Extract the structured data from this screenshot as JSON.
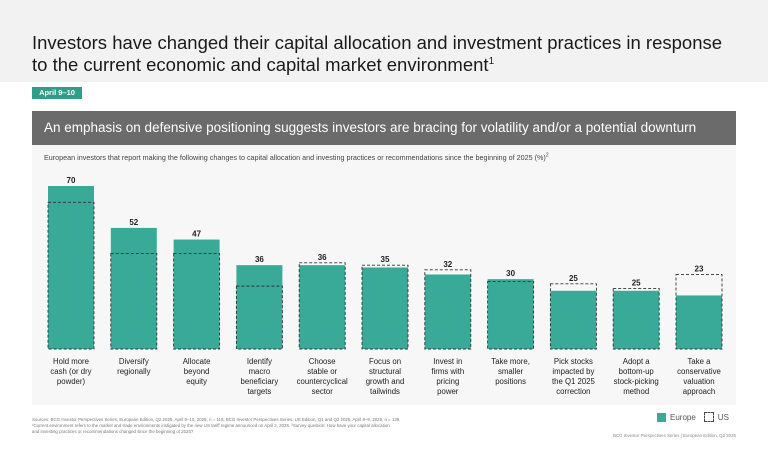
{
  "title": {
    "text": "Investors have changed their capital allocation and investment practices in response to the current economic and capital market environment",
    "footnote_mark": "1"
  },
  "date_tag": "April 9–10",
  "section_title": "An emphasis on defensive positioning suggests investors are bracing for volatility and/or a potential downturn",
  "subtitle": {
    "text": "European investors that report making the following changes to capital allocation and investing practices or recommendations since the beginning of 2025 (%)",
    "footnote_mark": "2"
  },
  "chart_data": {
    "type": "bar",
    "categories": [
      "Hold more cash (or dry powder)",
      "Diversify regionally",
      "Allocate beyond equity",
      "Identify macro beneficiary targets",
      "Choose stable or countercyclical sector",
      "Focus on structural growth and tailwinds",
      "Invest in firms with pricing power",
      "Take more, smaller positions",
      "Pick stocks impacted by the Q1 2025 correction",
      "Adopt a bottom-up stock-picking method",
      "Take a conservative valuation approach"
    ],
    "category_lines": [
      [
        "Hold more",
        "cash (or dry",
        "powder)"
      ],
      [
        "Diversify",
        "regionally"
      ],
      [
        "Allocate",
        "beyond",
        "equity"
      ],
      [
        "Identify",
        "macro",
        "beneficiary",
        "targets"
      ],
      [
        "Choose",
        "stable or",
        "countercyclical",
        "sector"
      ],
      [
        "Focus on",
        "structural",
        "growth and",
        "tailwinds"
      ],
      [
        "Invest in",
        "firms with",
        "pricing",
        "power"
      ],
      [
        "Take more,",
        "smaller",
        "positions"
      ],
      [
        "Pick stocks",
        "impacted by",
        "the Q1 2025",
        "correction"
      ],
      [
        "Adopt a",
        "bottom-up",
        "stock-picking",
        "method"
      ],
      [
        "Take a",
        "conservative",
        "valuation",
        "approach"
      ]
    ],
    "series": [
      {
        "name": "Europe",
        "values": [
          70,
          52,
          47,
          36,
          36,
          35,
          32,
          30,
          25,
          25,
          23
        ],
        "color": "#3aaa98",
        "style": "solid"
      },
      {
        "name": "US",
        "values": [
          63,
          41,
          41,
          27,
          37,
          36,
          34,
          29,
          28,
          26,
          32
        ],
        "color": "#333333",
        "style": "dashed-outline"
      }
    ],
    "data_labels": [
      "70",
      "52",
      "47",
      "36",
      "36",
      "35",
      "32",
      "30",
      "25",
      "25",
      "23"
    ],
    "ylim": [
      0,
      70
    ],
    "grid": false,
    "legend_position": "bottom-right"
  },
  "footnotes": {
    "sources": "Sources: BCG Investor Perspectives Series, European Edition, Q2 2025, April 9–10, 2025, n = 115; BCG Investor Perspectives Series, US Edition, Q1 and Q2 2025, April 8–9, 2025, n = 139.",
    "note1": "¹Current environment refers to the market and trade environments instigated by the new US tariff regime announced on April 2, 2025. ²Survey question: How have your capital allocation",
    "note2": "and investing practices or recommendations changed since the beginning of 2025?"
  },
  "credit": "BCG Investor Perspectives Series | European Edition, Q2 2025",
  "colors": {
    "teal": "#2e9e8a",
    "bar": "#3aaa98",
    "section_bar": "#6b6b6b"
  }
}
